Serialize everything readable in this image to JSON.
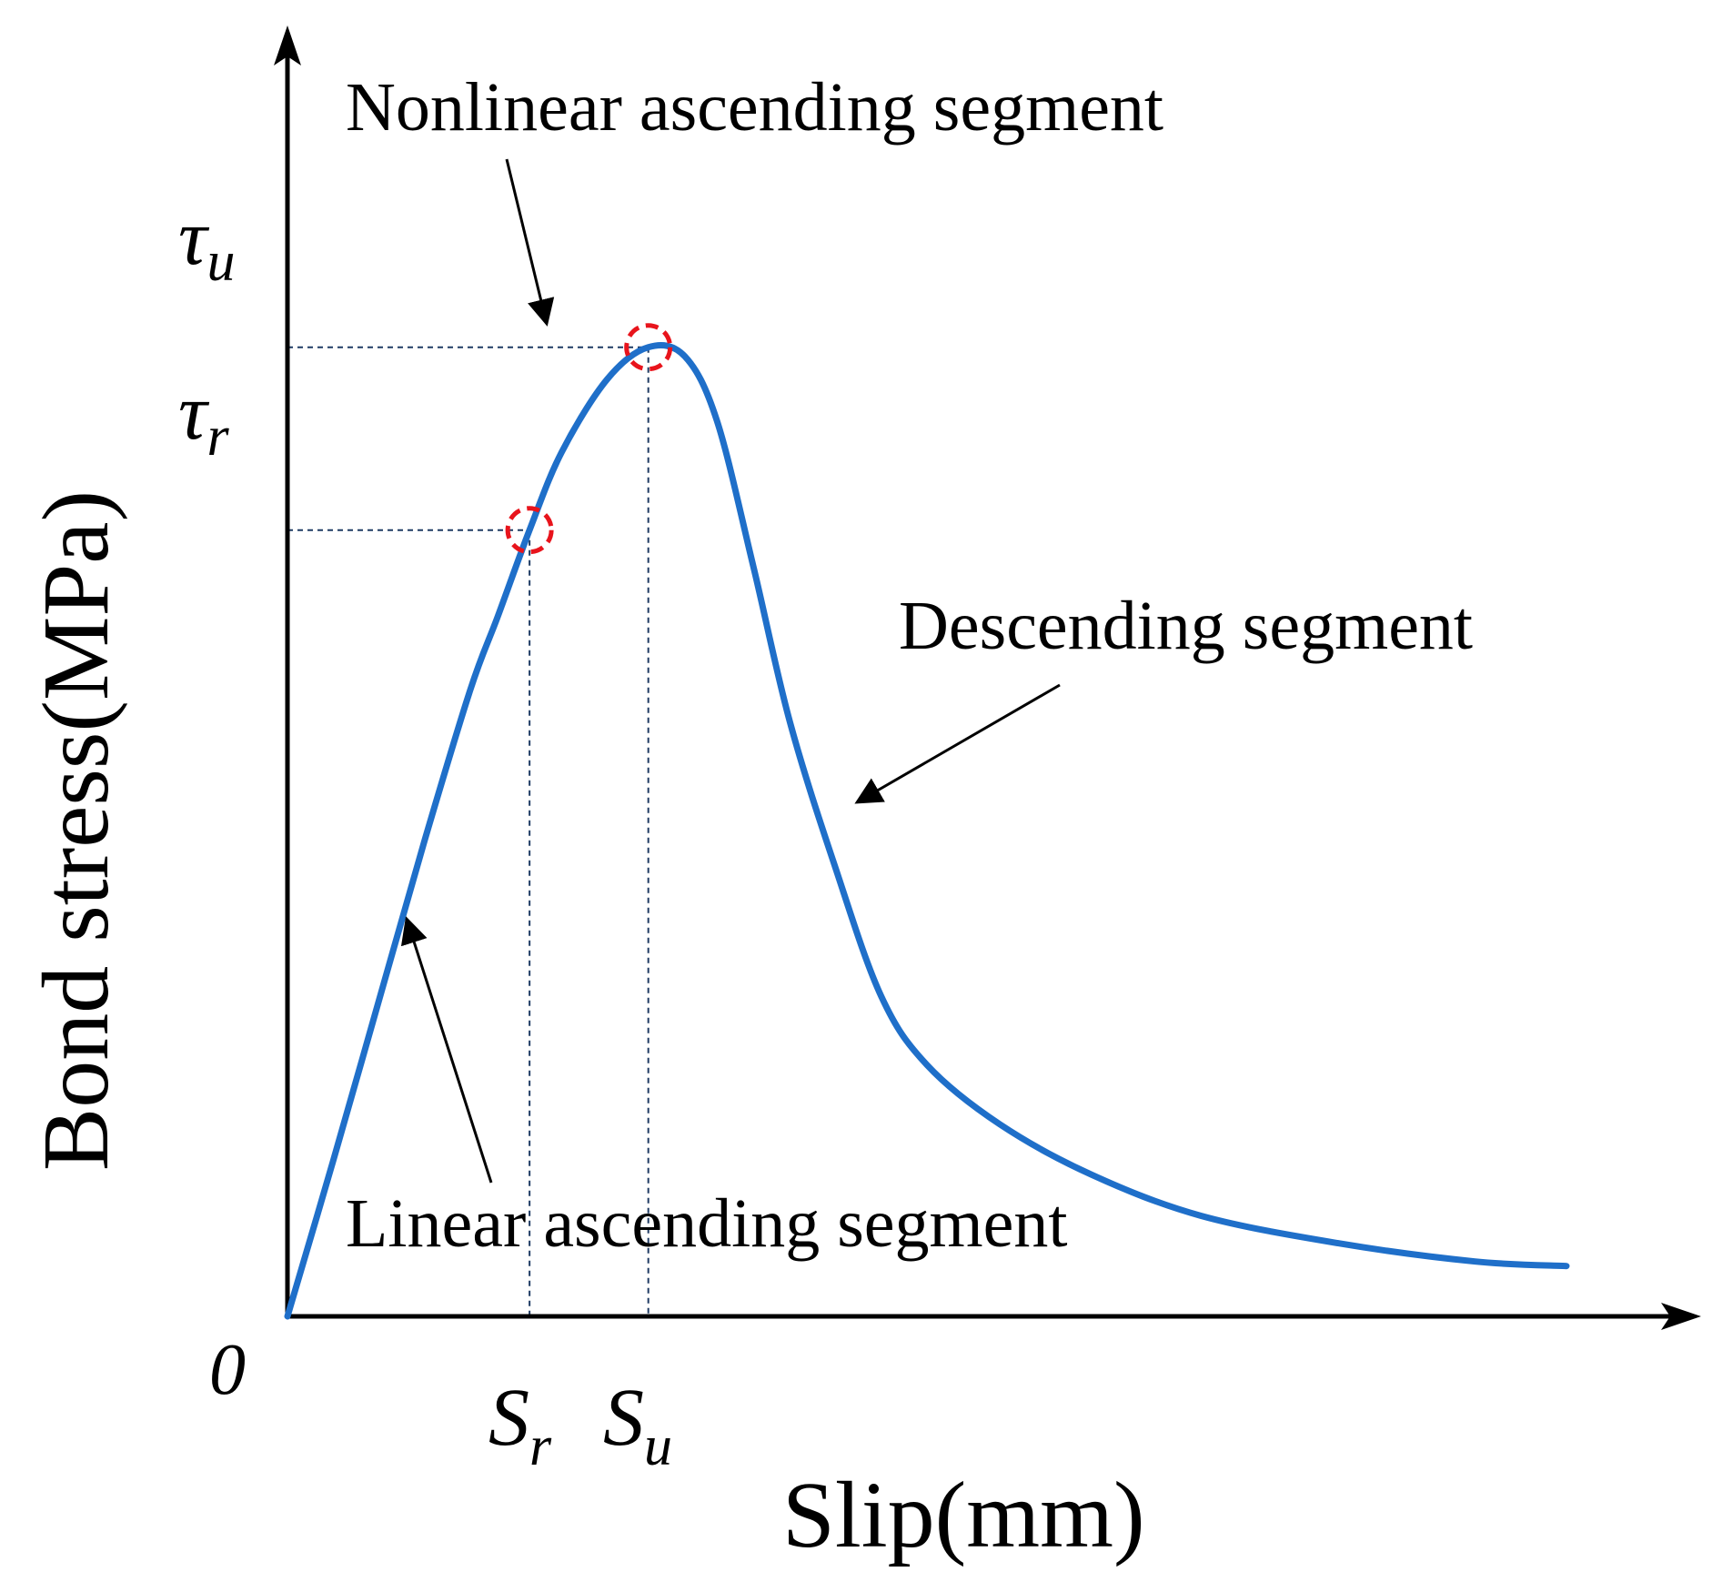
{
  "chart_data": {
    "type": "line",
    "title": "",
    "xlabel": "Slip(mm)",
    "ylabel": "Bond stress(MPa)",
    "origin_label": "0",
    "xlim": [
      0,
      14
    ],
    "ylim": [
      0,
      12
    ],
    "grid": false,
    "series": [
      {
        "name": "Bond stress-slip curve",
        "color": "#1f6fc9",
        "points": [
          [
            0,
            0
          ],
          [
            0.5,
            1.7
          ],
          [
            1,
            3.45
          ],
          [
            1.5,
            5.2
          ],
          [
            2,
            6.85
          ],
          [
            2.3,
            7.65
          ],
          [
            2.65,
            8.6
          ],
          [
            3,
            9.45
          ],
          [
            3.5,
            10.25
          ],
          [
            3.95,
            10.6
          ],
          [
            4.35,
            10.5
          ],
          [
            4.7,
            9.8
          ],
          [
            5.1,
            8.2
          ],
          [
            5.5,
            6.5
          ],
          [
            6,
            4.9
          ],
          [
            6.5,
            3.5
          ],
          [
            7,
            2.75
          ],
          [
            7.8,
            2.1
          ],
          [
            8.8,
            1.55
          ],
          [
            10,
            1.1
          ],
          [
            11.5,
            0.8
          ],
          [
            13,
            0.6
          ],
          [
            14,
            0.55
          ]
        ]
      }
    ],
    "key_points": [
      {
        "name": "Sr",
        "x": 2.65,
        "y": 8.6,
        "x_label_base": "S",
        "x_label_sub": "r",
        "y_label_base": "τ",
        "y_label_sub": "r"
      },
      {
        "name": "Su",
        "x": 3.95,
        "y": 10.6,
        "x_label_base": "S",
        "x_label_sub": "u",
        "y_label_base": "τ",
        "y_label_sub": "u"
      }
    ],
    "marker_color": "#e8141c",
    "guide_color": "#1f3b63",
    "annotations": [
      {
        "text": "Nonlinear ascending segment",
        "target": "nonlinear"
      },
      {
        "text": "Descending segment",
        "target": "descending"
      },
      {
        "text": "Linear ascending segment",
        "target": "linear"
      }
    ]
  }
}
